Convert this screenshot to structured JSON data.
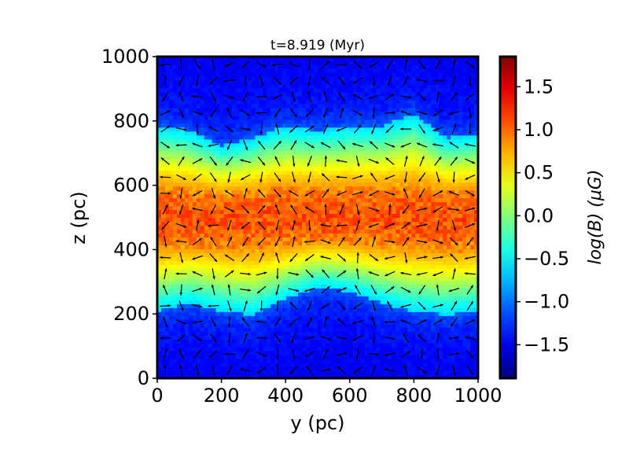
{
  "chart_data": {
    "type": "heatmap",
    "title": "t=8.919 (Myr)",
    "xlabel": "y (pc)",
    "ylabel": "z (pc)",
    "xlim": [
      0,
      1000
    ],
    "ylim": [
      0,
      1000
    ],
    "xticks": [
      "0",
      "200",
      "400",
      "600",
      "800",
      "1000"
    ],
    "yticks": [
      "0",
      "200",
      "400",
      "600",
      "800",
      "1000"
    ],
    "colormap": "jet",
    "colorbar": {
      "label": "log(B) (μG)",
      "range": [
        -1.89,
        1.85
      ],
      "ticks": [
        "−1.5",
        "−1.0",
        "−0.5",
        "0.0",
        "0.5",
        "1.0",
        "1.5"
      ],
      "tick_values": [
        -1.5,
        -1.0,
        -0.5,
        0.0,
        0.5,
        1.0,
        1.5
      ]
    },
    "field": {
      "sample_y": [
        0,
        100,
        200,
        300,
        400,
        500,
        600,
        700,
        800,
        900,
        1000
      ],
      "band_top_z": [
        785,
        772,
        724,
        748,
        785,
        772,
        785,
        785,
        822,
        748,
        760
      ],
      "band_bottom_z": [
        210,
        235,
        210,
        198,
        247,
        284,
        271,
        235,
        210,
        198,
        210
      ],
      "midplane_z": 500,
      "midplane_value": 1.05,
      "band_edge_value": -0.6,
      "outside_value": -1.35
    },
    "quiver": {
      "description": "magnetic field direction arrows",
      "nx": 20,
      "ny": 20
    }
  }
}
